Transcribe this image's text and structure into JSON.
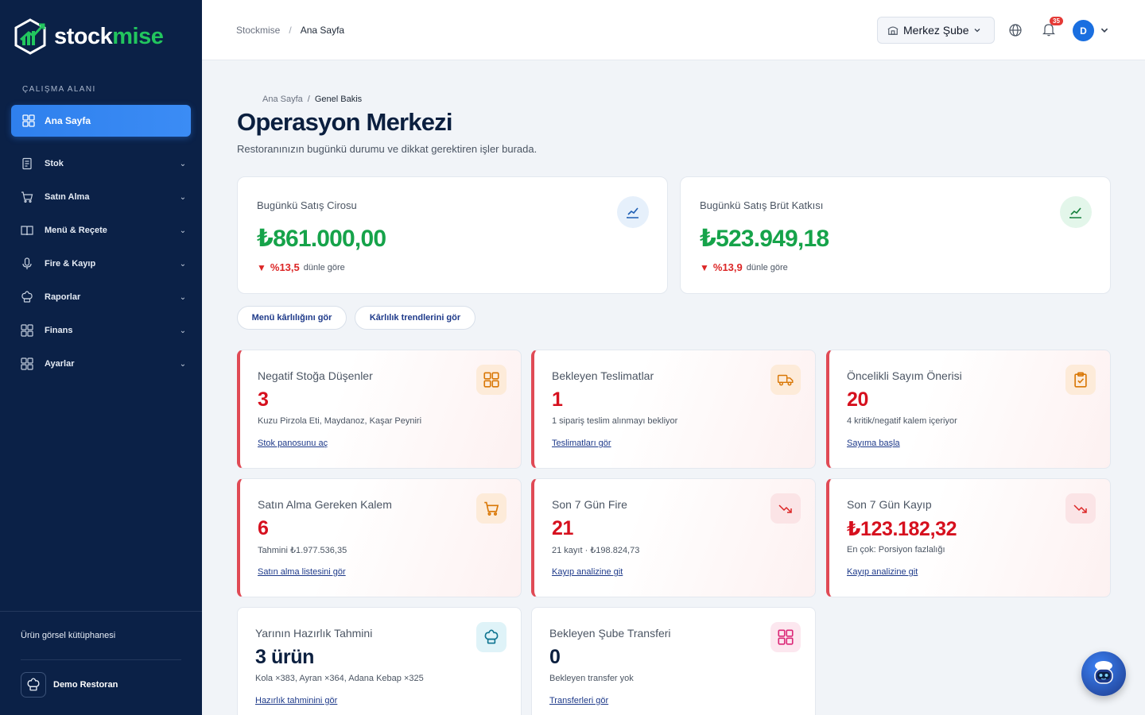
{
  "brand": {
    "part1": "stock",
    "part2": "mise"
  },
  "sidebar": {
    "section_label": "ÇALIŞMA ALANI",
    "active": {
      "label": "Ana Sayfa",
      "icon": "grid-icon"
    },
    "items": [
      {
        "label": "Stok",
        "icon": "clipboard-icon"
      },
      {
        "label": "Satın Alma",
        "icon": "cart-icon"
      },
      {
        "label": "Menü & Reçete",
        "icon": "book-icon"
      },
      {
        "label": "Fire & Kayıp",
        "icon": "microphone-icon"
      },
      {
        "label": "Raporlar",
        "icon": "chef-hat-icon"
      },
      {
        "label": "Finans",
        "icon": "grid-icon"
      },
      {
        "label": "Ayarlar",
        "icon": "grid-icon"
      }
    ],
    "library_link": "Ürün görsel kütüphanesi",
    "restaurant_name": "Demo Restoran"
  },
  "topbar": {
    "crumb_root": "Stockmise",
    "crumb_sep": "/",
    "crumb_current": "Ana Sayfa",
    "branch": "Merkez Şube",
    "notification_count": "35",
    "avatar_initial": "D"
  },
  "page": {
    "crumb_root": "Ana Sayfa",
    "crumb_sep": "/",
    "crumb_current": "Genel Bakis",
    "title": "Operasyon Merkezi",
    "subtitle": "Restoranınızın bugünkü durumu ve dikkat gerektiren işler burada."
  },
  "kpis": [
    {
      "title": "Bugünkü Satış Cirosu",
      "value": "₺861.000,00",
      "arrow": "▼",
      "pct": "%13,5",
      "rest": "dünle göre",
      "icon": "trend-up-icon",
      "icon_bg": "#e6f0fb",
      "icon_color": "#1e5fb4"
    },
    {
      "title": "Bugünkü Satış Brüt Katkısı",
      "value": "₺523.949,18",
      "arrow": "▼",
      "pct": "%13,9",
      "rest": "dünle göre",
      "icon": "trend-up-icon",
      "icon_bg": "#e3f6ea",
      "icon_color": "#15803d"
    }
  ],
  "actions": [
    "Menü kârlılığını gör",
    "Kârlılık trendlerini gör"
  ],
  "cards": [
    {
      "title": "Negatif Stoğa Düşenler",
      "value": "3",
      "sub": "Kuzu Pirzola Eti, Maydanoz, Kaşar Peyniri",
      "link": "Stok panosunu aç",
      "icon": "grid-icon",
      "icon_bg": "#fdebd9",
      "icon_color": "#d97706",
      "alert": true
    },
    {
      "title": "Bekleyen Teslimatlar",
      "value": "1",
      "sub": "1 sipariş teslim alınmayı bekliyor",
      "link": "Teslimatları gör",
      "icon": "truck-icon",
      "icon_bg": "#fdebd9",
      "icon_color": "#d97706",
      "alert": true
    },
    {
      "title": "Öncelikli Sayım Önerisi",
      "value": "20",
      "sub": "4 kritik/negatif kalem içeriyor",
      "link": "Sayıma başla",
      "icon": "clipboard-check-icon",
      "icon_bg": "#fdebd9",
      "icon_color": "#d97706",
      "alert": true
    },
    {
      "title": "Satın Alma Gereken Kalem",
      "value": "6",
      "sub": "Tahmini ₺1.977.536,35",
      "link": "Satın alma listesini gör",
      "icon": "cart-icon",
      "icon_bg": "#fdebd9",
      "icon_color": "#d97706",
      "alert": true
    },
    {
      "title": "Son 7 Gün Fire",
      "value": "21",
      "sub": "21 kayıt · ₺198.824,73",
      "link": "Kayıp analizine git",
      "icon": "trend-down-icon",
      "icon_bg": "#fbe4e6",
      "icon_color": "#dc2626",
      "alert": true
    },
    {
      "title": "Son 7 Gün Kayıp",
      "value": "₺123.182,32",
      "sub": "En çok: Porsiyon fazlalığı",
      "link": "Kayıp analizine git",
      "icon": "trend-down-icon",
      "icon_bg": "#fbe4e6",
      "icon_color": "#dc2626",
      "alert": true
    },
    {
      "title": "Yarının Hazırlık Tahmini",
      "value": "3 ürün",
      "sub": "Kola ×383, Ayran ×364, Adana Kebap ×325",
      "link": "Hazırlık tahminini gör",
      "icon": "chef-hat-icon",
      "icon_bg": "#dff3f8",
      "icon_color": "#0e7490",
      "alert": false
    },
    {
      "title": "Bekleyen Şube Transferi",
      "value": "0",
      "sub": "Bekleyen transfer yok",
      "link": "Transferleri gör",
      "icon": "grid-icon",
      "icon_bg": "#fce7ef",
      "icon_color": "#db2777",
      "alert": false
    }
  ]
}
